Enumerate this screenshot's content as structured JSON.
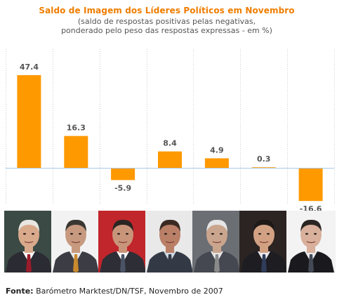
{
  "title": "Saldo de Imagem dos Líderes Políticos em Novembro",
  "subtitle_line1": "(saldo de respostas positivas pelas negativas,",
  "subtitle_line2": "ponderado pelo peso das respostas expressas - em %)",
  "source_label": "Fonte:",
  "source_text": " Barómetro Marktest/DN/TSF, Novembro de 2007",
  "colors": {
    "bar": "#ff9900",
    "title": "#ef7d00",
    "grid": "#cccccc",
    "zero_line": "#aac8e6",
    "label": "#555555"
  },
  "chart_data": {
    "type": "bar",
    "values": [
      47.4,
      16.3,
      -5.9,
      8.4,
      4.9,
      0.3,
      -16.6
    ],
    "value_labels": [
      "47.4",
      "16.3",
      "-5.9",
      "8.4",
      "4.9",
      "0.3",
      "-16.6"
    ],
    "ylim": [
      -18,
      52
    ],
    "grid": true,
    "legend": "none"
  },
  "portraits": [
    {
      "bg": "#3b4a44",
      "skin": "#d9a98c",
      "hair": "#e8e6e2",
      "suit": "#2b2b33",
      "shirt": "#ffffff",
      "tie": "#9a1b2a"
    },
    {
      "bg": "#f2f2f2",
      "skin": "#c79a80",
      "hair": "#3a3733",
      "suit": "#3c3c44",
      "shirt": "#e9e9ee",
      "tie": "#c98a2c"
    },
    {
      "bg": "#c0262b",
      "skin": "#c9957a",
      "hair": "#2a2522",
      "suit": "#2e2e36",
      "shirt": "#ffffff",
      "tie": "#4a5466"
    },
    {
      "bg": "#e9e9e9",
      "skin": "#b97f67",
      "hair": "#3a2a22",
      "suit": "#333a46",
      "shirt": "#cfd8e3",
      "tie": "#333a46"
    },
    {
      "bg": "#6b6e73",
      "skin": "#caa58e",
      "hair": "#e5e5e5",
      "suit": "#454850",
      "shirt": "#e7e7e7",
      "tie": "#8a8a8a"
    },
    {
      "bg": "#2b2422",
      "skin": "#d2a183",
      "hair": "#1e1917",
      "suit": "#1d1d22",
      "shirt": "#ecebef",
      "tie": "#2f3c5a"
    },
    {
      "bg": "#f3f3f3",
      "skin": "#d8b09b",
      "hair": "#2a2522",
      "suit": "#1a1a1e",
      "shirt": "#e8e8ee",
      "tie": "#444a55"
    }
  ]
}
